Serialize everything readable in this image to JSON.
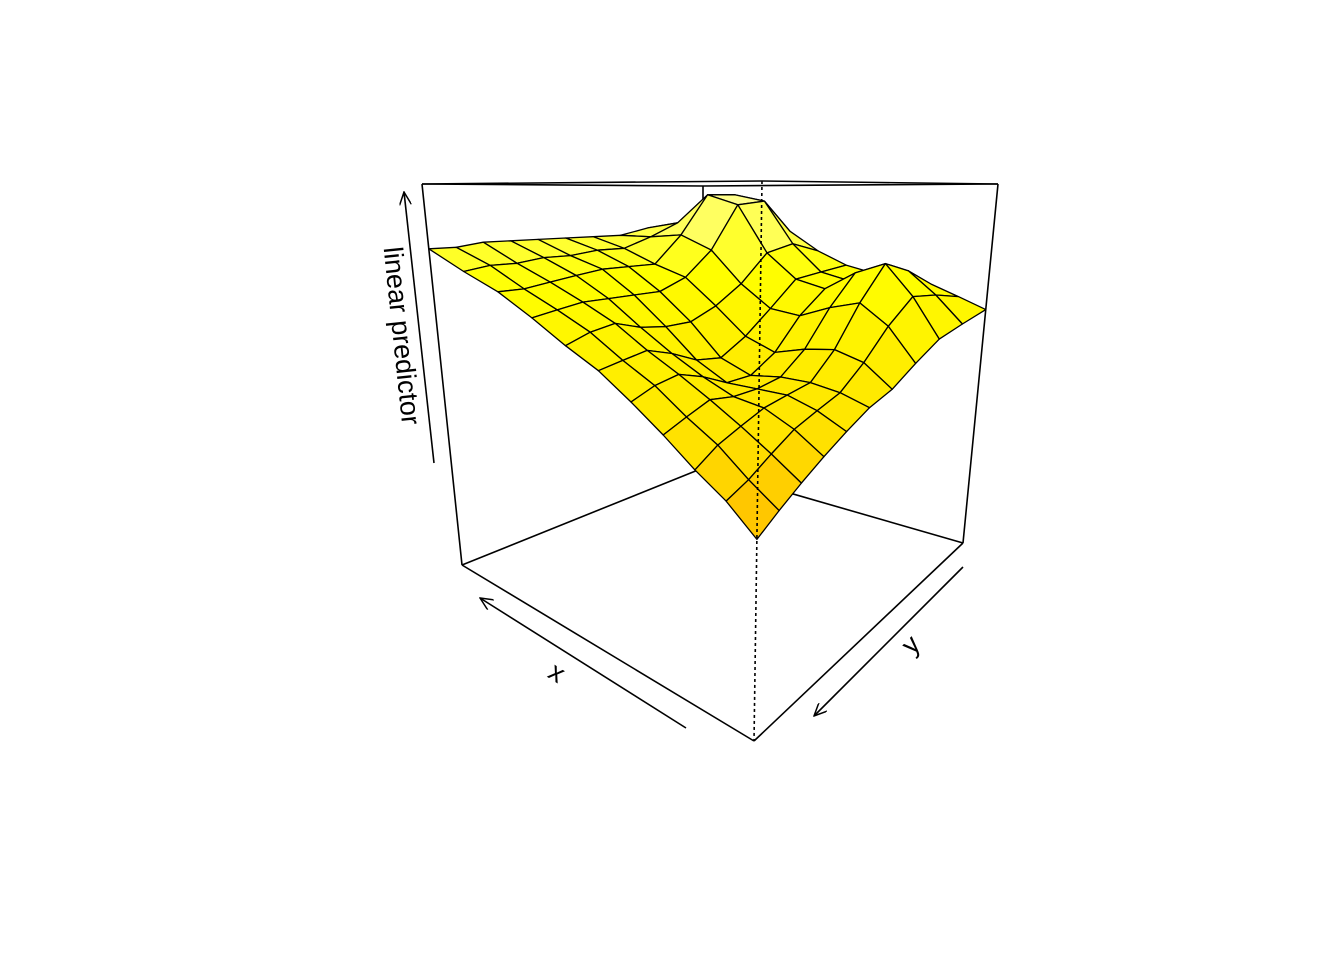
{
  "chart_data": {
    "type": "surface",
    "xlabel": "x",
    "ylabel": "y",
    "zlabel": "linear predictor",
    "xlim": [
      0,
      1
    ],
    "ylim": [
      0,
      1
    ],
    "zlim": [
      0,
      1
    ],
    "colors": [
      "#ff3c00",
      "#ff9a00",
      "#ffe600",
      "#ffff00",
      "#ffffa8"
    ],
    "x": [
      0,
      0.1,
      0.2,
      0.3,
      0.4,
      0.5,
      0.6,
      0.7,
      0.8,
      0.9,
      1
    ],
    "y": [
      0,
      0.1,
      0.2,
      0.3,
      0.4,
      0.5,
      0.6,
      0.7,
      0.8,
      0.9,
      1
    ],
    "z": [
      [
        0.65,
        0.68,
        0.71,
        0.72,
        0.73,
        0.75,
        0.79,
        0.85,
        0.87,
        0.85,
        0.85
      ],
      [
        0.63,
        0.7,
        0.76,
        0.75,
        0.72,
        0.74,
        0.82,
        0.95,
        0.97,
        0.89,
        0.86
      ],
      [
        0.61,
        0.71,
        0.79,
        0.76,
        0.71,
        0.73,
        0.8,
        0.94,
        0.97,
        0.88,
        0.86
      ],
      [
        0.57,
        0.65,
        0.7,
        0.68,
        0.65,
        0.66,
        0.72,
        0.81,
        0.85,
        0.84,
        0.84
      ],
      [
        0.53,
        0.58,
        0.6,
        0.59,
        0.57,
        0.6,
        0.67,
        0.74,
        0.77,
        0.81,
        0.84
      ],
      [
        0.51,
        0.53,
        0.54,
        0.54,
        0.53,
        0.56,
        0.64,
        0.71,
        0.77,
        0.81,
        0.84
      ],
      [
        0.48,
        0.51,
        0.53,
        0.53,
        0.53,
        0.57,
        0.64,
        0.71,
        0.77,
        0.8,
        0.84
      ],
      [
        0.45,
        0.49,
        0.52,
        0.53,
        0.56,
        0.6,
        0.65,
        0.71,
        0.76,
        0.8,
        0.84
      ],
      [
        0.42,
        0.46,
        0.5,
        0.54,
        0.58,
        0.62,
        0.67,
        0.71,
        0.75,
        0.79,
        0.84
      ],
      [
        0.39,
        0.43,
        0.48,
        0.52,
        0.57,
        0.61,
        0.66,
        0.7,
        0.74,
        0.79,
        0.83
      ],
      [
        0.36,
        0.41,
        0.45,
        0.5,
        0.55,
        0.6,
        0.64,
        0.69,
        0.74,
        0.78,
        0.83
      ]
    ]
  }
}
